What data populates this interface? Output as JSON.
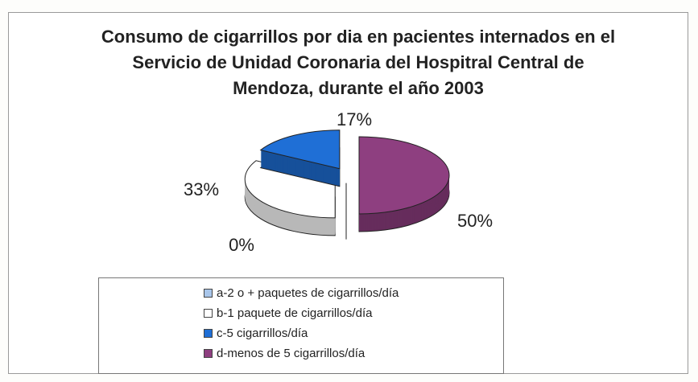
{
  "chart_data": {
    "type": "pie3d",
    "title": "Consumo de cigarrillos por dia en pacientes internados en el Servicio de Unidad Coronaria del Hospitral Central de Mendoza, durante el año 2003",
    "categories": [
      "a-2 o + paquetes de cigarrillos/día",
      "b-1 paquete de cigarrillos/día",
      "c-5 cigarrillos/día",
      "d-menos de 5 cigarrillos/día"
    ],
    "values": [
      0,
      33,
      17,
      50
    ],
    "value_labels": [
      "0%",
      "33%",
      "17%",
      "50%"
    ],
    "colors": [
      "#a9c6ea",
      "#ffffff",
      "#1f6fd6",
      "#8e3f80"
    ],
    "legend": "bottom"
  }
}
